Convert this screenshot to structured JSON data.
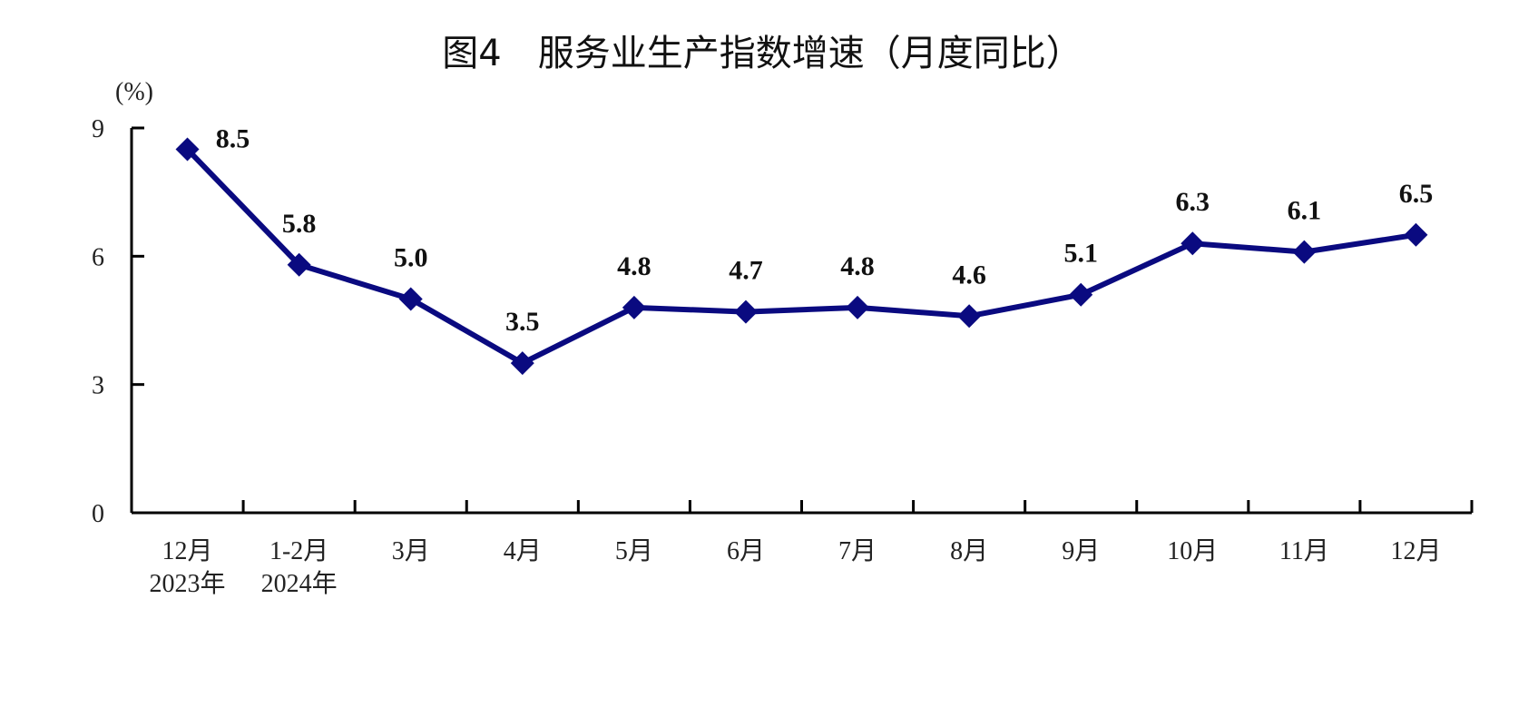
{
  "chart_data": {
    "type": "line",
    "title": "图4　服务业生产指数增速（月度同比）",
    "ylabel": "(%)",
    "xlabel": "",
    "categories": [
      "12月\n2023年",
      "1-2月\n2024年",
      "3月",
      "4月",
      "5月",
      "6月",
      "7月",
      "8月",
      "9月",
      "10月",
      "11月",
      "12月"
    ],
    "series": [
      {
        "values": [
          8.5,
          5.8,
          5.0,
          3.5,
          4.8,
          4.7,
          4.8,
          4.6,
          5.1,
          6.3,
          6.1,
          6.5
        ],
        "labels": [
          "8.5",
          "5.8",
          "5.0",
          "3.5",
          "4.8",
          "4.7",
          "4.8",
          "4.6",
          "5.1",
          "6.3",
          "6.1",
          "6.5"
        ]
      }
    ],
    "yticks": [
      "0",
      "3",
      "6",
      "9"
    ],
    "ylim": [
      0,
      9
    ],
    "grid": false,
    "marker": "diamond",
    "colors": {
      "line": "#0a0a80",
      "axis": "#000000"
    }
  }
}
